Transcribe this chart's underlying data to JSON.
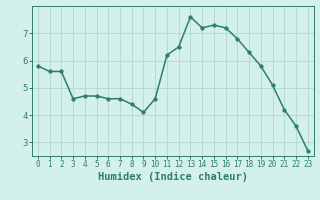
{
  "x": [
    0,
    1,
    2,
    3,
    4,
    5,
    6,
    7,
    8,
    9,
    10,
    11,
    12,
    13,
    14,
    15,
    16,
    17,
    18,
    19,
    20,
    21,
    22,
    23
  ],
  "y": [
    5.8,
    5.6,
    5.6,
    4.6,
    4.7,
    4.7,
    4.6,
    4.6,
    4.4,
    4.1,
    4.6,
    6.2,
    6.5,
    7.6,
    7.2,
    7.3,
    7.2,
    6.8,
    6.3,
    5.8,
    5.1,
    4.2,
    3.6,
    2.7
  ],
  "line_color": "#2e7d6e",
  "marker": "o",
  "marker_size": 2.5,
  "bg_color": "#d4f0ec",
  "grid_color": "#afd8d0",
  "grid_minor_color": "#c8eae5",
  "xlabel": "Humidex (Indice chaleur)",
  "xlim": [
    -0.5,
    23.5
  ],
  "ylim": [
    2.5,
    8.0
  ],
  "yticks": [
    3,
    4,
    5,
    6,
    7
  ],
  "xticks": [
    0,
    1,
    2,
    3,
    4,
    5,
    6,
    7,
    8,
    9,
    10,
    11,
    12,
    13,
    14,
    15,
    16,
    17,
    18,
    19,
    20,
    21,
    22,
    23
  ],
  "tick_color": "#2e7d6e",
  "label_color": "#2e7d6e",
  "xlabel_fontsize": 7.5,
  "tick_fontsize": 5.5,
  "ytick_fontsize": 6.5,
  "linewidth": 1.1
}
